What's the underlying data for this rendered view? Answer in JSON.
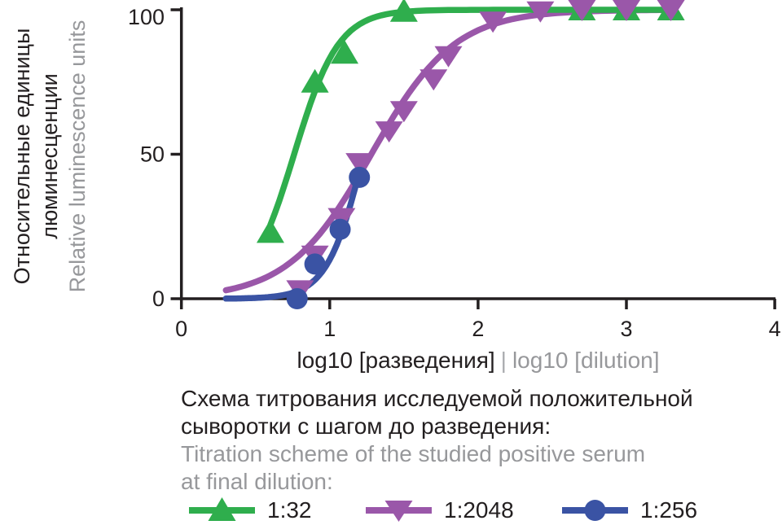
{
  "colors": {
    "ink": "#231f20",
    "gray": "#97989b",
    "green": "#2fae4d",
    "purple": "#9a57a9",
    "blue": "#3a53a4"
  },
  "chart_data": {
    "type": "line",
    "title": "",
    "xlabel_ru": "log10 [разведения]",
    "xlabel_divider": "|",
    "xlabel_en": "log10 [dilution]",
    "ylabel_ru_line1": "Относительные единицы",
    "ylabel_ru_line2": "люминесценции",
    "ylabel_en": "Relative luminescence units",
    "xlim": [
      0,
      4
    ],
    "ylim": [
      0,
      100
    ],
    "x_ticks": [
      0,
      1,
      2,
      3,
      4
    ],
    "y_ticks": [
      0,
      50,
      100
    ],
    "grid": false,
    "legend_position": "bottom",
    "series": [
      {
        "name": "1:32",
        "color": "#2fae4d",
        "marker": "triangle-up",
        "points": [
          [
            0.6,
            23
          ],
          [
            0.9,
            75
          ],
          [
            1.1,
            85
          ],
          [
            1.5,
            99.5
          ],
          [
            2.7,
            100
          ],
          [
            3.0,
            100
          ],
          [
            3.3,
            100
          ]
        ],
        "curve": {
          "ec50": 0.76,
          "hill": 2.9,
          "from": 0.6,
          "to": 3.3
        }
      },
      {
        "name": "1:2048",
        "color": "#9a57a9",
        "marker": "triangle-down",
        "points": [
          [
            0.8,
            3
          ],
          [
            0.9,
            15
          ],
          [
            1.08,
            28
          ],
          [
            1.2,
            47
          ],
          [
            1.4,
            58
          ],
          [
            1.5,
            65
          ],
          [
            1.7,
            76
          ],
          [
            1.8,
            84
          ],
          [
            2.1,
            96
          ],
          [
            2.42,
            99.5
          ],
          [
            2.7,
            100
          ],
          [
            3.0,
            100
          ],
          [
            3.3,
            100
          ]
        ],
        "curve": {
          "ec50": 1.28,
          "hill": 1.55,
          "from": 0.3,
          "to": 3.3
        }
      },
      {
        "name": "1:256",
        "color": "#3a53a4",
        "marker": "circle",
        "points": [
          [
            0.78,
            0
          ],
          [
            0.9,
            12
          ],
          [
            1.07,
            24
          ],
          [
            1.2,
            42
          ]
        ],
        "curve": {
          "ec50": 1.23,
          "hill": 3.5,
          "from": 0.3,
          "to": 1.21
        }
      }
    ]
  },
  "caption": {
    "ru_line1": "Схема титрования исследуемой положительной",
    "ru_line2": "сыворотки с шагом до разведения:",
    "en_line1": "Titration scheme of the studied positive serum",
    "en_line2": "at final dilution:"
  }
}
